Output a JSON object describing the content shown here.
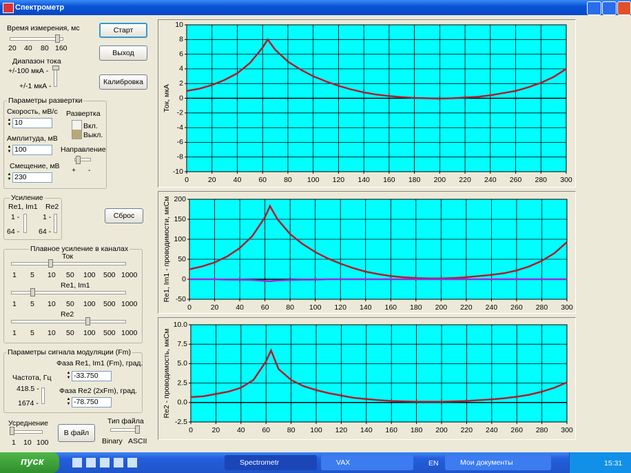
{
  "window": {
    "title": "Спектрометр"
  },
  "measurement_time": {
    "label": "Время измерения, мс",
    "ticks": [
      "20",
      "40",
      "80",
      "160"
    ]
  },
  "current_range": {
    "label": "Диапазон тока",
    "options": [
      "+/-100 мкА -",
      "+/-1 мкА -"
    ]
  },
  "buttons": {
    "start": "Старт",
    "exit": "Выход",
    "calibration": "Калибровка",
    "reset": "Сброс",
    "to_file": "В файл"
  },
  "sweep": {
    "title": "Параметры развертки",
    "speed_label": "Скорость, мВ/с",
    "speed": "10",
    "amplitude_label": "Амплитуда, мВ",
    "amplitude": "100",
    "offset_label": "Смещение, мВ",
    "offset": "230",
    "sweep_label": "Развертка",
    "on": "Вкл.",
    "off": "Выкл.",
    "direction_label": "Направление",
    "direction_plus": "+",
    "direction_minus": "-"
  },
  "gain": {
    "title": "Усиление",
    "re1im1": "Re1, Im1",
    "re2": "Re2",
    "levels": [
      "1 -",
      "64 -"
    ]
  },
  "smooth_gain": {
    "title": "Плавное усиление в каналах",
    "channels": [
      "Ток",
      "Re1, Im1",
      "Re2"
    ],
    "scale": [
      "1",
      "5",
      "10",
      "50",
      "100",
      "500",
      "1000"
    ]
  },
  "modulation": {
    "title": "Параметры сигнала модуляции (Fm)",
    "freq_label": "Частота, Гц",
    "freq_options": [
      "418.5 -",
      "1674 -"
    ],
    "phase1_label": "Фаза Re1, Im1 (Fm), град.",
    "phase1": "-33.750",
    "phase2_label": "Фаза  Re2 (2xFm), град.",
    "phase2": "-78.750"
  },
  "averaging": {
    "label": "Усреднение",
    "scale": [
      "1",
      "10",
      "100"
    ]
  },
  "file_type": {
    "label": "Тип файла",
    "options": [
      "Binary",
      "ASCII"
    ]
  },
  "taskbar": {
    "start": "пуск",
    "tasks": [
      "Spectrometr",
      "VAX"
    ],
    "lang": "EN",
    "folder": "Мои документы",
    "time": "15:31"
  },
  "chart_data": [
    {
      "type": "line",
      "y_label": "Ток, мкА",
      "x": [
        0,
        10,
        20,
        30,
        40,
        50,
        60,
        64,
        70,
        80,
        90,
        100,
        110,
        120,
        130,
        140,
        150,
        160,
        170,
        180,
        190,
        200,
        210,
        220,
        230,
        240,
        250,
        260,
        270,
        280,
        290,
        300
      ],
      "series": [
        {
          "color": "#b01c2e",
          "values": [
            1.0,
            1.3,
            1.8,
            2.5,
            3.4,
            4.8,
            6.9,
            8.0,
            6.6,
            5.0,
            3.9,
            3.0,
            2.3,
            1.7,
            1.2,
            0.8,
            0.5,
            0.3,
            0.15,
            0.05,
            0.0,
            -0.05,
            0.0,
            0.1,
            0.2,
            0.4,
            0.7,
            1.0,
            1.5,
            2.1,
            2.9,
            4.0
          ]
        }
      ],
      "xlim": [
        0,
        300
      ],
      "xticks": [
        0,
        20,
        40,
        60,
        80,
        100,
        120,
        140,
        160,
        180,
        200,
        220,
        240,
        260,
        280,
        300
      ],
      "ylim": [
        -10,
        10
      ],
      "yticks": [
        -10,
        -8,
        -6,
        -4,
        -2,
        0,
        2,
        4,
        6,
        8,
        10
      ],
      "grid": true
    },
    {
      "type": "line",
      "y_label": "Re1, Im1 - проводимости, мкСм",
      "x": [
        0,
        10,
        20,
        30,
        40,
        50,
        60,
        64,
        70,
        80,
        90,
        100,
        110,
        120,
        130,
        140,
        150,
        160,
        170,
        180,
        190,
        200,
        210,
        220,
        230,
        240,
        250,
        260,
        270,
        280,
        290,
        300
      ],
      "series": [
        {
          "color": "#b01c2e",
          "values": [
            25,
            32,
            42,
            57,
            78,
            108,
            155,
            183,
            150,
            113,
            88,
            68,
            52,
            39,
            28,
            19,
            13,
            8,
            5,
            3,
            2,
            2,
            3,
            5,
            8,
            11,
            15,
            22,
            32,
            46,
            65,
            93
          ]
        },
        {
          "color": "#9a2bd6",
          "values": [
            0,
            0,
            0,
            -1,
            -1,
            -2,
            -4,
            -5,
            -3,
            -2,
            -1,
            -1,
            0,
            0,
            0,
            0,
            0,
            0,
            0,
            0,
            0,
            0,
            0,
            0,
            0,
            0,
            0,
            0,
            0,
            0,
            0,
            0
          ]
        }
      ],
      "xlim": [
        0,
        300
      ],
      "xticks": [
        0,
        20,
        40,
        60,
        80,
        100,
        120,
        140,
        160,
        180,
        200,
        220,
        240,
        260,
        280,
        300
      ],
      "ylim": [
        -50,
        200
      ],
      "yticks": [
        -50,
        0,
        50,
        100,
        150,
        200
      ],
      "grid": true
    },
    {
      "type": "line",
      "y_label": "Re2 - проводимость, мкСм",
      "x": [
        0,
        10,
        20,
        30,
        40,
        50,
        60,
        64,
        70,
        80,
        90,
        100,
        110,
        120,
        130,
        140,
        150,
        160,
        170,
        180,
        190,
        200,
        210,
        220,
        230,
        240,
        250,
        260,
        270,
        280,
        290,
        300
      ],
      "series": [
        {
          "color": "#b01c2e",
          "values": [
            0.7,
            0.8,
            1.1,
            1.4,
            1.9,
            2.9,
            5.3,
            6.7,
            4.3,
            2.9,
            2.1,
            1.6,
            1.2,
            0.9,
            0.6,
            0.45,
            0.3,
            0.2,
            0.15,
            0.1,
            0.1,
            0.1,
            0.15,
            0.2,
            0.3,
            0.4,
            0.55,
            0.75,
            1.0,
            1.4,
            1.9,
            2.6
          ]
        }
      ],
      "xlim": [
        0,
        300
      ],
      "xticks": [
        0,
        20,
        40,
        60,
        80,
        100,
        120,
        140,
        160,
        180,
        200,
        220,
        240,
        260,
        280,
        300
      ],
      "ylim": [
        -2.5,
        10
      ],
      "yticks": [
        {
          "value": -2.5,
          "label": "-2.5"
        },
        {
          "value": 0,
          "label": "0.0"
        },
        {
          "value": 2.5,
          "label": "2.5"
        },
        {
          "value": 5,
          "label": "5.0"
        },
        {
          "value": 7.5,
          "label": "7.5"
        },
        {
          "value": 10,
          "label": "10.0"
        }
      ],
      "grid": true
    }
  ]
}
